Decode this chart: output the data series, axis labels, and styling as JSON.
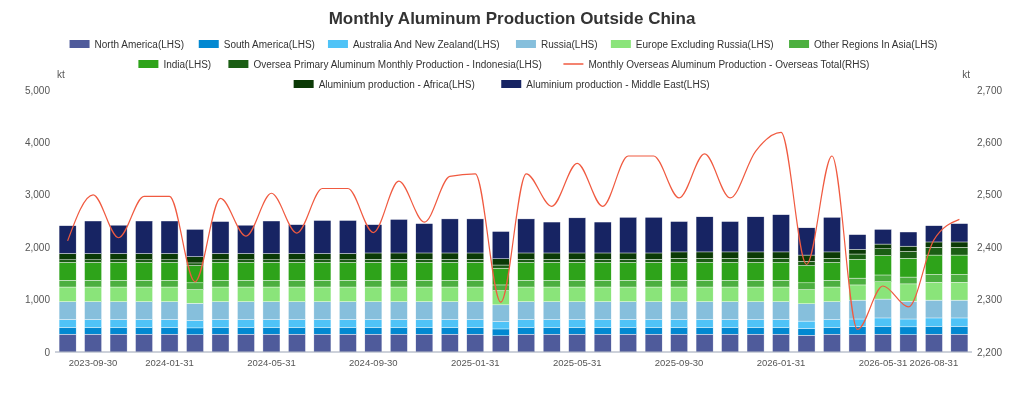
{
  "chart_data": {
    "type": "bar",
    "stacked": true,
    "title": "Monthly Aluminum Production Outside China",
    "ylabel": "kt",
    "y2label": "kt",
    "legend": "top",
    "grid": false,
    "categories": [
      null,
      "2023-09-30",
      null,
      null,
      "2024-01-31",
      null,
      null,
      null,
      "2024-05-31",
      null,
      null,
      null,
      "2024-09-30",
      null,
      null,
      null,
      "2025-01-31",
      null,
      null,
      null,
      "2025-05-31",
      null,
      null,
      null,
      "2025-09-30",
      null,
      null,
      null,
      "2026-01-31",
      null,
      null,
      null,
      "2026-05-31",
      null,
      "2026-08-31",
      null
    ],
    "ylim": [
      0,
      5000
    ],
    "yticks": [
      0,
      {
        "value": 1000,
        "label": "1,000"
      },
      {
        "value": 2000,
        "label": "2,000"
      },
      {
        "value": 3000,
        "label": "3,000"
      },
      {
        "value": 4000,
        "label": "4,000"
      },
      {
        "value": 5000,
        "label": "5,000"
      }
    ],
    "y2lim": [
      2200,
      2700
    ],
    "y2ticks": [
      {
        "value": 2200,
        "label": "2,200"
      },
      {
        "value": 2300,
        "label": "2,300"
      },
      {
        "value": 2400,
        "label": "2,400"
      },
      {
        "value": 2500,
        "label": "2,500"
      },
      {
        "value": 2600,
        "label": "2,600"
      },
      {
        "value": 2700,
        "label": "2,700"
      }
    ],
    "series": [
      {
        "name": "North America(LHS)",
        "color": "#4f5b9b",
        "values": [
          340,
          340,
          340,
          340,
          340,
          330,
          340,
          340,
          340,
          340,
          340,
          340,
          340,
          340,
          340,
          340,
          340,
          310,
          340,
          340,
          340,
          340,
          340,
          340,
          340,
          340,
          340,
          340,
          340,
          320,
          340,
          330,
          340,
          330,
          340,
          340
        ]
      },
      {
        "name": "South America(LHS)",
        "color": "#0288d1",
        "values": [
          130,
          130,
          130,
          130,
          130,
          130,
          130,
          130,
          130,
          130,
          130,
          130,
          130,
          130,
          130,
          130,
          130,
          130,
          130,
          130,
          130,
          130,
          130,
          130,
          130,
          130,
          130,
          130,
          130,
          130,
          130,
          160,
          150,
          150,
          150,
          150
        ]
      },
      {
        "name": "Australia And New Zealand(LHS)",
        "color": "#4fc3f7",
        "values": [
          150,
          150,
          150,
          150,
          150,
          140,
          150,
          150,
          150,
          150,
          150,
          150,
          150,
          150,
          150,
          150,
          150,
          140,
          150,
          150,
          150,
          150,
          150,
          150,
          150,
          150,
          150,
          150,
          150,
          140,
          150,
          140,
          160,
          150,
          160,
          160
        ]
      },
      {
        "name": "Russia(LHS)",
        "color": "#86bfdc",
        "values": [
          340,
          340,
          340,
          340,
          340,
          330,
          340,
          340,
          340,
          340,
          340,
          340,
          340,
          340,
          340,
          340,
          340,
          320,
          340,
          340,
          340,
          340,
          340,
          340,
          340,
          340,
          340,
          340,
          340,
          330,
          340,
          360,
          360,
          340,
          340,
          340
        ]
      },
      {
        "name": "Europe Excluding Russia(LHS)",
        "color": "#8ae47a",
        "values": [
          280,
          280,
          280,
          280,
          280,
          260,
          280,
          280,
          280,
          280,
          280,
          280,
          280,
          280,
          280,
          280,
          280,
          270,
          280,
          280,
          280,
          280,
          280,
          280,
          280,
          280,
          280,
          280,
          280,
          270,
          280,
          290,
          330,
          330,
          340,
          340
        ]
      },
      {
        "name": "Other Regions In Asia(LHS)",
        "color": "#4caf3f",
        "values": [
          130,
          130,
          130,
          130,
          130,
          130,
          130,
          130,
          130,
          130,
          130,
          130,
          130,
          130,
          130,
          130,
          130,
          110,
          130,
          130,
          130,
          130,
          130,
          130,
          130,
          130,
          130,
          130,
          130,
          130,
          130,
          130,
          130,
          130,
          150,
          150
        ]
      },
      {
        "name": "India(LHS)",
        "color": "#2ea31a",
        "values": [
          340,
          340,
          340,
          340,
          340,
          330,
          340,
          340,
          340,
          340,
          340,
          340,
          340,
          340,
          340,
          340,
          340,
          320,
          340,
          340,
          340,
          340,
          340,
          340,
          340,
          340,
          340,
          340,
          340,
          330,
          340,
          360,
          370,
          360,
          370,
          370
        ]
      },
      {
        "name": "Oversea Primary Aluminum Monthly Production - Indonesia(LHS)",
        "color": "#1b5e14",
        "values": [
          50,
          50,
          50,
          50,
          50,
          50,
          50,
          50,
          50,
          50,
          50,
          50,
          60,
          60,
          60,
          60,
          60,
          60,
          60,
          60,
          60,
          60,
          60,
          60,
          80,
          80,
          80,
          80,
          80,
          80,
          80,
          100,
          130,
          130,
          150,
          150
        ]
      },
      {
        "name": "Monthly Overseas Aluminum Production - Overseas Total(RHS)",
        "type": "line",
        "axis": "y2",
        "color": "#f05a40",
        "values": [
          2412,
          2500,
          2418,
          2497,
          2497,
          2334,
          2493,
          2421,
          2503,
          2427,
          2512,
          2512,
          2428,
          2526,
          2448,
          2535,
          2540,
          2295,
          2540,
          2478,
          2560,
          2478,
          2574,
          2574,
          2494,
          2578,
          2494,
          2583,
          2619,
          2367,
          2574,
          2243,
          2326,
          2286,
          2414,
          2453
        ]
      },
      {
        "name": "Aluminium production - Africa(LHS)",
        "color": "#0b3a06",
        "values": [
          120,
          120,
          120,
          120,
          120,
          120,
          120,
          120,
          120,
          120,
          120,
          120,
          120,
          120,
          120,
          120,
          120,
          120,
          120,
          120,
          120,
          120,
          120,
          120,
          120,
          120,
          120,
          120,
          120,
          120,
          120,
          90,
          90,
          100,
          100,
          100
        ]
      },
      {
        "name": "Aluminium production - Middle East(LHS)",
        "color": "#172463",
        "values": [
          530,
          620,
          540,
          620,
          620,
          520,
          610,
          540,
          620,
          550,
          630,
          630,
          540,
          640,
          560,
          650,
          650,
          520,
          650,
          590,
          670,
          590,
          680,
          680,
          580,
          670,
          580,
          670,
          710,
          520,
          660,
          280,
          280,
          270,
          310,
          350
        ]
      }
    ]
  }
}
